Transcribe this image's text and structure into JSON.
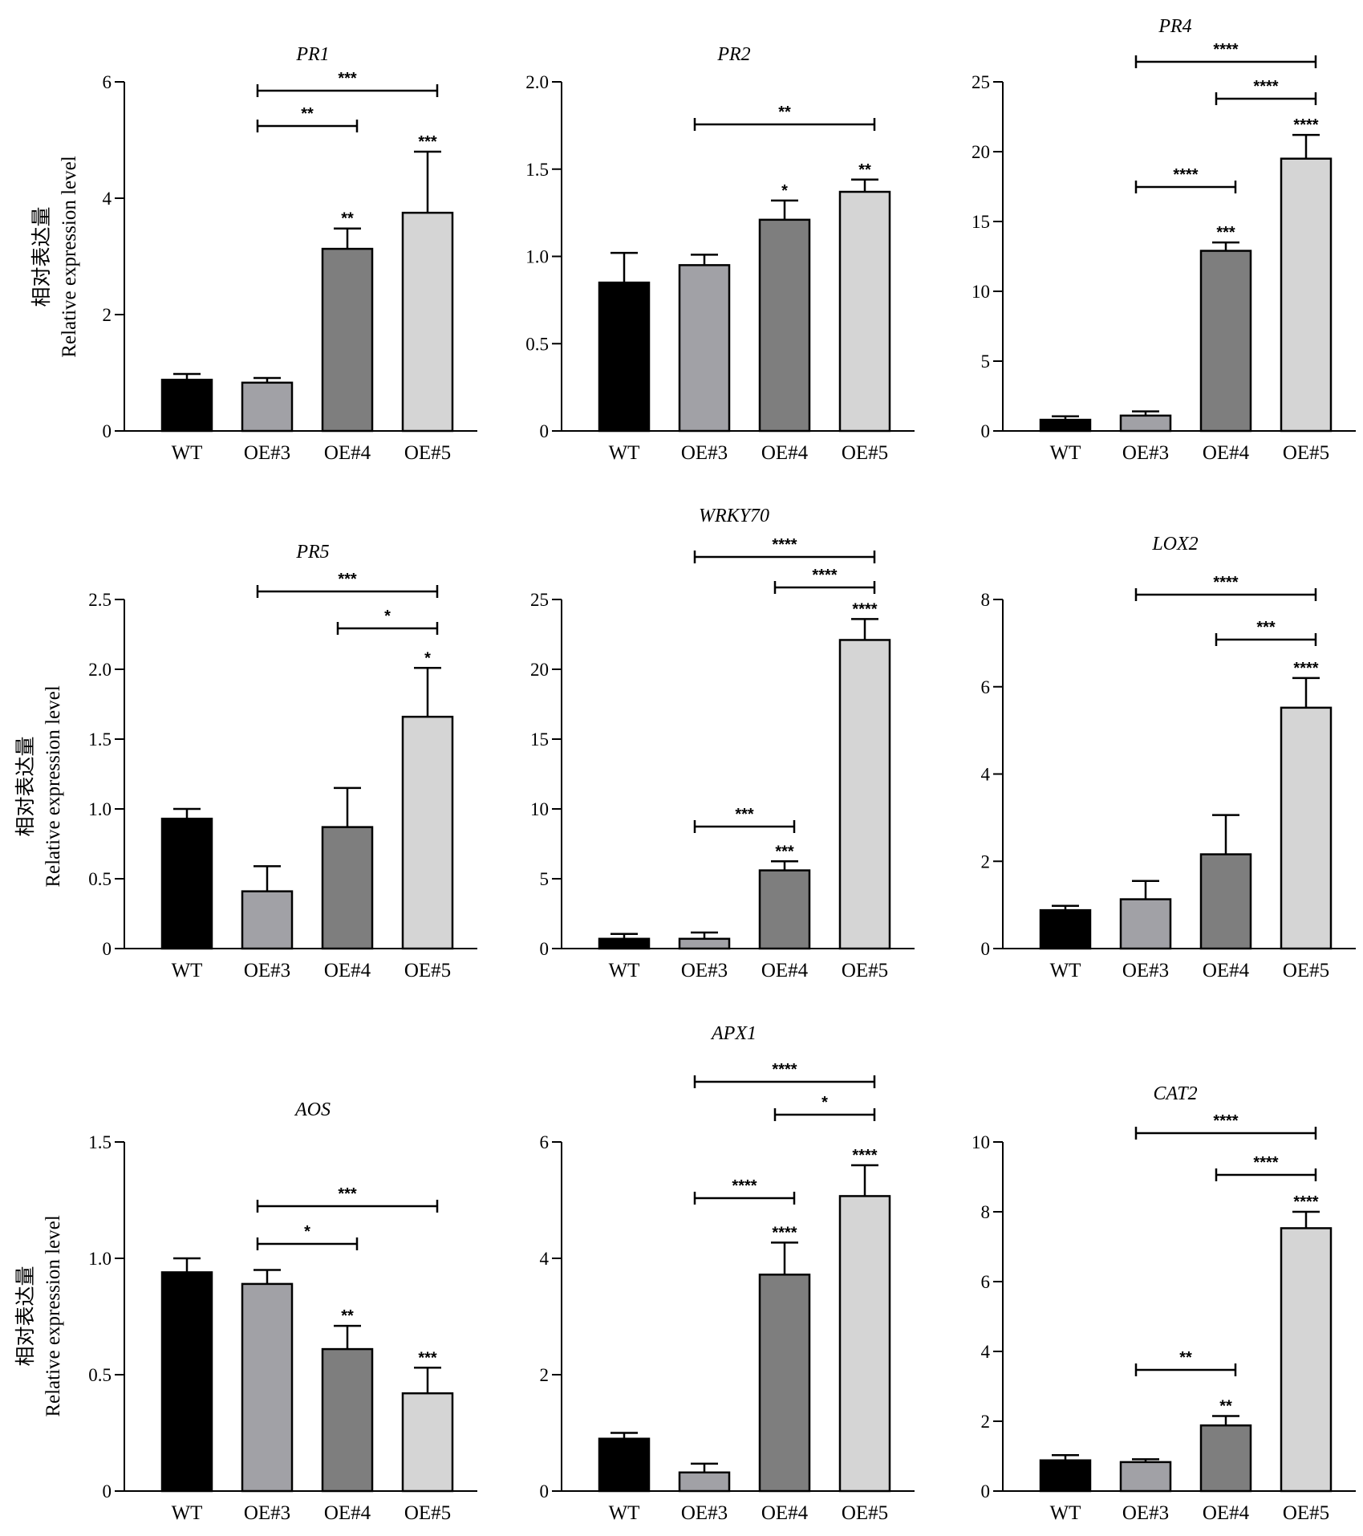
{
  "categories": [
    "WT",
    "OE#3",
    "OE#4",
    "OE#5"
  ],
  "bar_colors": [
    "#000000",
    "#a1a1a6",
    "#7e7e7e",
    "#d5d5d5"
  ],
  "y_label_cn": "相对表达量",
  "y_label_en": "Relative expression level",
  "chart_data": [
    {
      "type": "bar",
      "title": "PR1",
      "ylim": [
        0,
        6
      ],
      "yticks": [
        0,
        2,
        4,
        6
      ],
      "ytick_labels": [
        "0",
        "2",
        "4",
        "6"
      ],
      "categories": [
        "WT",
        "OE#3",
        "OE#4",
        "OE#5"
      ],
      "values": [
        0.88,
        0.83,
        3.13,
        3.75
      ],
      "errors": [
        0.1,
        0.08,
        0.35,
        1.05
      ],
      "bar_sig": [
        "",
        "",
        "**",
        "***"
      ],
      "brackets": [
        {
          "from": 1,
          "to": 3,
          "label": "***"
        },
        {
          "from": 1,
          "to": 2,
          "label": "**"
        }
      ]
    },
    {
      "type": "bar",
      "title": "PR2",
      "ylim": [
        0,
        2.0
      ],
      "yticks": [
        0,
        0.5,
        1.0,
        1.5,
        2.0
      ],
      "ytick_labels": [
        "0",
        "0.5",
        "1.0",
        "1.5",
        "2.0"
      ],
      "categories": [
        "WT",
        "OE#3",
        "OE#4",
        "OE#5"
      ],
      "values": [
        0.85,
        0.95,
        1.21,
        1.37
      ],
      "errors": [
        0.17,
        0.06,
        0.11,
        0.07
      ],
      "bar_sig": [
        "",
        "",
        "*",
        "**"
      ],
      "brackets": [
        {
          "from": 1,
          "to": 3,
          "label": "**"
        }
      ]
    },
    {
      "type": "bar",
      "title": "PR4",
      "ylim": [
        0,
        25
      ],
      "yticks": [
        0,
        5,
        10,
        15,
        20,
        25
      ],
      "ytick_labels": [
        "0",
        "5",
        "10",
        "15",
        "20",
        "25"
      ],
      "categories": [
        "WT",
        "OE#3",
        "OE#4",
        "OE#5"
      ],
      "values": [
        0.8,
        1.1,
        12.9,
        19.5
      ],
      "errors": [
        0.25,
        0.3,
        0.6,
        1.7
      ],
      "bar_sig": [
        "",
        "",
        "***",
        "****"
      ],
      "brackets": [
        {
          "from": 1,
          "to": 3,
          "label": "****"
        },
        {
          "from": 2,
          "to": 3,
          "label": "****"
        },
        {
          "from": 1,
          "to": 2,
          "label": "****"
        }
      ]
    },
    {
      "type": "bar",
      "title": "PR5",
      "ylim": [
        0,
        2.5
      ],
      "yticks": [
        0,
        0.5,
        1.0,
        1.5,
        2.0,
        2.5
      ],
      "ytick_labels": [
        "0",
        "0.5",
        "1.0",
        "1.5",
        "2.0",
        "2.5"
      ],
      "categories": [
        "WT",
        "OE#3",
        "OE#4",
        "OE#5"
      ],
      "values": [
        0.93,
        0.41,
        0.87,
        1.66
      ],
      "errors": [
        0.07,
        0.18,
        0.28,
        0.35
      ],
      "bar_sig": [
        "",
        "",
        "",
        "*"
      ],
      "brackets": [
        {
          "from": 1,
          "to": 3,
          "label": "***"
        },
        {
          "from": 2,
          "to": 3,
          "label": "*"
        }
      ]
    },
    {
      "type": "bar",
      "title": "WRKY70",
      "ylim": [
        0,
        25
      ],
      "yticks": [
        0,
        5,
        10,
        15,
        20,
        25
      ],
      "ytick_labels": [
        "0",
        "5",
        "10",
        "15",
        "20",
        "25"
      ],
      "categories": [
        "WT",
        "OE#3",
        "OE#4",
        "OE#5"
      ],
      "values": [
        0.7,
        0.7,
        5.6,
        22.1
      ],
      "errors": [
        0.35,
        0.45,
        0.65,
        1.5
      ],
      "bar_sig": [
        "",
        "",
        "***",
        "****"
      ],
      "brackets": [
        {
          "from": 1,
          "to": 3,
          "label": "****"
        },
        {
          "from": 2,
          "to": 3,
          "label": "****"
        },
        {
          "from": 1,
          "to": 2,
          "label": "***"
        }
      ]
    },
    {
      "type": "bar",
      "title": "LOX2",
      "ylim": [
        0,
        8
      ],
      "yticks": [
        0,
        2,
        4,
        6,
        8
      ],
      "ytick_labels": [
        "0",
        "2",
        "4",
        "6",
        "8"
      ],
      "categories": [
        "WT",
        "OE#3",
        "OE#4",
        "OE#5"
      ],
      "values": [
        0.88,
        1.13,
        2.16,
        5.52
      ],
      "errors": [
        0.1,
        0.42,
        0.9,
        0.68
      ],
      "bar_sig": [
        "",
        "",
        "",
        "****"
      ],
      "brackets": [
        {
          "from": 1,
          "to": 3,
          "label": "****"
        },
        {
          "from": 2,
          "to": 3,
          "label": "***"
        }
      ]
    },
    {
      "type": "bar",
      "title": "AOS",
      "ylim": [
        0,
        1.5
      ],
      "yticks": [
        0,
        0.5,
        1.0,
        1.5
      ],
      "ytick_labels": [
        "0",
        "0.5",
        "1.0",
        "1.5"
      ],
      "categories": [
        "WT",
        "OE#3",
        "OE#4",
        "OE#5"
      ],
      "values": [
        0.94,
        0.89,
        0.61,
        0.42
      ],
      "errors": [
        0.06,
        0.06,
        0.1,
        0.11
      ],
      "bar_sig": [
        "",
        "",
        "**",
        "***"
      ],
      "brackets": [
        {
          "from": 1,
          "to": 3,
          "label": "***"
        },
        {
          "from": 1,
          "to": 2,
          "label": "*"
        }
      ]
    },
    {
      "type": "bar",
      "title": "APX1",
      "ylim": [
        0,
        6
      ],
      "yticks": [
        0,
        2,
        4,
        6
      ],
      "ytick_labels": [
        "0",
        "2",
        "4",
        "6"
      ],
      "categories": [
        "WT",
        "OE#3",
        "OE#4",
        "OE#5"
      ],
      "values": [
        0.9,
        0.32,
        3.72,
        5.07
      ],
      "errors": [
        0.1,
        0.15,
        0.55,
        0.53
      ],
      "bar_sig": [
        "",
        "",
        "****",
        "****"
      ],
      "brackets": [
        {
          "from": 1,
          "to": 3,
          "label": "****"
        },
        {
          "from": 2,
          "to": 3,
          "label": "*"
        },
        {
          "from": 1,
          "to": 2,
          "label": "****"
        }
      ]
    },
    {
      "type": "bar",
      "title": "CAT2",
      "ylim": [
        0,
        10
      ],
      "yticks": [
        0,
        2,
        4,
        6,
        8,
        10
      ],
      "ytick_labels": [
        "0",
        "2",
        "4",
        "6",
        "8",
        "10"
      ],
      "categories": [
        "WT",
        "OE#3",
        "OE#4",
        "OE#5"
      ],
      "values": [
        0.88,
        0.83,
        1.88,
        7.53
      ],
      "errors": [
        0.15,
        0.08,
        0.27,
        0.47
      ],
      "bar_sig": [
        "",
        "",
        "**",
        "****"
      ],
      "brackets": [
        {
          "from": 1,
          "to": 3,
          "label": "****"
        },
        {
          "from": 2,
          "to": 3,
          "label": "****"
        },
        {
          "from": 1,
          "to": 2,
          "label": "**"
        }
      ]
    }
  ]
}
